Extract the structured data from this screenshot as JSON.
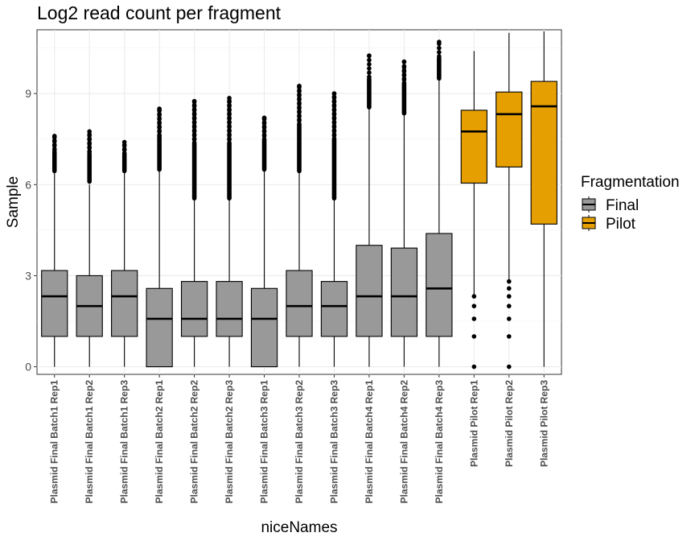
{
  "chart_data": {
    "type": "boxplot",
    "title": "Log2 read count per fragment",
    "xlabel": "niceNames",
    "ylabel": "Sample",
    "ylim": [
      -0.25,
      11.1
    ],
    "yticks": [
      0,
      3,
      6,
      9
    ],
    "grid": true,
    "legend": {
      "title": "Fragmentation",
      "placement": "right",
      "entries": [
        {
          "name": "Final",
          "color": "#999999"
        },
        {
          "name": "Pilot",
          "color": "#E69F00"
        }
      ]
    },
    "categories": [
      "Plasmid Final Batch1 Rep1",
      "Plasmid Final Batch1 Rep2",
      "Plasmid Final Batch1 Rep3",
      "Plasmid Final Batch2 Rep1",
      "Plasmid Final Batch2 Rep2",
      "Plasmid Final Batch2 Rep3",
      "Plasmid Final Batch3 Rep1",
      "Plasmid Final Batch3 Rep2",
      "Plasmid Final Batch3 Rep3",
      "Plasmid Final Batch4 Rep1",
      "Plasmid Final Batch4 Rep2",
      "Plasmid Final Batch4 Rep3",
      "Plasmid Pilot Rep1",
      "Plasmid Pilot Rep2",
      "Plasmid Pilot Rep3"
    ],
    "boxes": [
      {
        "group": "Final",
        "min": 0,
        "q1": 1.0,
        "median": 2.32,
        "q3": 3.17,
        "upper_whisker": 6.4,
        "outliers_low": [],
        "outlier_range_high": [
          6.45,
          7.6
        ]
      },
      {
        "group": "Final",
        "min": 0,
        "q1": 1.0,
        "median": 2.0,
        "q3": 3.0,
        "upper_whisker": 6.0,
        "outliers_low": [],
        "outlier_range_high": [
          6.1,
          7.75
        ]
      },
      {
        "group": "Final",
        "min": 0,
        "q1": 1.0,
        "median": 2.32,
        "q3": 3.17,
        "upper_whisker": 6.4,
        "outliers_low": [],
        "outlier_range_high": [
          6.45,
          7.4
        ]
      },
      {
        "group": "Final",
        "min": 0,
        "q1": 0.0,
        "median": 1.58,
        "q3": 2.58,
        "upper_whisker": 6.45,
        "outliers_low": [],
        "outlier_range_high": [
          6.5,
          8.5
        ]
      },
      {
        "group": "Final",
        "min": 0,
        "q1": 1.0,
        "median": 1.58,
        "q3": 2.81,
        "upper_whisker": 5.5,
        "outliers_low": [],
        "outlier_range_high": [
          5.55,
          8.75
        ]
      },
      {
        "group": "Final",
        "min": 0,
        "q1": 1.0,
        "median": 1.58,
        "q3": 2.81,
        "upper_whisker": 5.5,
        "outliers_low": [],
        "outlier_range_high": [
          5.55,
          8.85
        ]
      },
      {
        "group": "Final",
        "min": 0,
        "q1": 0.0,
        "median": 1.58,
        "q3": 2.58,
        "upper_whisker": 6.45,
        "outliers_low": [],
        "outlier_range_high": [
          6.5,
          8.2
        ]
      },
      {
        "group": "Final",
        "min": 0,
        "q1": 1.0,
        "median": 2.0,
        "q3": 3.17,
        "upper_whisker": 6.4,
        "outliers_low": [],
        "outlier_range_high": [
          6.45,
          9.25
        ]
      },
      {
        "group": "Final",
        "min": 0,
        "q1": 1.0,
        "median": 2.0,
        "q3": 2.81,
        "upper_whisker": 5.5,
        "outliers_low": [],
        "outlier_range_high": [
          5.55,
          9.0
        ]
      },
      {
        "group": "Final",
        "min": 0,
        "q1": 1.0,
        "median": 2.32,
        "q3": 4.0,
        "upper_whisker": 8.5,
        "outliers_low": [],
        "outlier_range_high": [
          8.55,
          10.25
        ]
      },
      {
        "group": "Final",
        "min": 0,
        "q1": 1.0,
        "median": 2.32,
        "q3": 3.91,
        "upper_whisker": 8.3,
        "outliers_low": [],
        "outlier_range_high": [
          8.35,
          10.05
        ]
      },
      {
        "group": "Final",
        "min": 0,
        "q1": 1.0,
        "median": 2.58,
        "q3": 4.39,
        "upper_whisker": 9.45,
        "outliers_low": [],
        "outlier_range_high": [
          9.5,
          10.7
        ]
      },
      {
        "group": "Pilot",
        "min": 2.32,
        "q1": 6.05,
        "median": 7.75,
        "q3": 8.45,
        "upper_whisker": 10.4,
        "outliers_low": [
          0,
          1.0,
          1.58,
          2.0,
          2.32
        ],
        "outlier_range_high": null
      },
      {
        "group": "Pilot",
        "min": 2.81,
        "q1": 6.58,
        "median": 8.32,
        "q3": 9.05,
        "upper_whisker": 11.0,
        "outliers_low": [
          0,
          1.0,
          1.58,
          2.0,
          2.32,
          2.58,
          2.81
        ],
        "outlier_range_high": null
      },
      {
        "group": "Pilot",
        "min": 0,
        "q1": 4.7,
        "median": 8.58,
        "q3": 9.4,
        "upper_whisker": 11.05,
        "outliers_low": [],
        "outlier_range_high": null
      }
    ]
  }
}
